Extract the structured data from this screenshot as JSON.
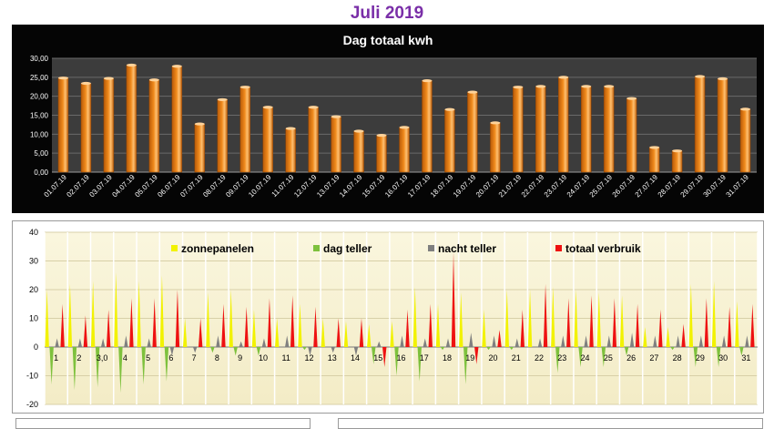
{
  "page": {
    "title": "Juli 2019"
  },
  "chart_data": [
    {
      "type": "bar",
      "title": "Dag totaal kwh",
      "categories": [
        "01.07.19",
        "02.07.19",
        "03.07.19",
        "04.07.19",
        "05.07.19",
        "06.07.19",
        "07.07.19",
        "08.07.19",
        "09.07.19",
        "10.07.19",
        "11.07.19",
        "12.07.19",
        "13.07.19",
        "14.07.19",
        "15.07.19",
        "16.07.19",
        "17.07.19",
        "18.07.19",
        "19.07.19",
        "20.07.19",
        "21.07.19",
        "22.07.19",
        "23.07.19",
        "24.07.19",
        "25.07.19",
        "26.07.19",
        "27.07.19",
        "28.07.19",
        "29.07.19",
        "30.07.19",
        "31.07.19"
      ],
      "values": [
        24.8,
        23.4,
        24.7,
        28.2,
        24.3,
        27.9,
        12.7,
        19.1,
        22.4,
        17.1,
        11.5,
        17.1,
        14.6,
        10.8,
        9.7,
        11.8,
        24.1,
        16.5,
        21.1,
        13.0,
        22.4,
        22.6,
        25.0,
        22.6,
        22.6,
        19.4,
        6.5,
        5.6,
        25.2,
        24.6,
        16.6
      ],
      "yticks": [
        "0,00",
        "5,00",
        "10,00",
        "15,00",
        "20,00",
        "25,00",
        "30,00"
      ],
      "ylim": [
        0,
        30
      ],
      "grid": true,
      "bar_color": "#f08a1c",
      "background": "#3c3c3c"
    },
    {
      "type": "bar",
      "categories": [
        "1",
        "2",
        "3,0",
        "4",
        "5",
        "6",
        "7",
        "8",
        "9",
        "10",
        "11",
        "12",
        "13",
        "14",
        "15",
        "16",
        "17",
        "18",
        "19",
        "20",
        "21",
        "22",
        "23",
        "24",
        "25",
        "26",
        "27",
        "28",
        "29",
        "30",
        "31"
      ],
      "yticks": [
        "-20",
        "-10",
        "0",
        "10",
        "20",
        "30",
        "40"
      ],
      "ylim": [
        -20,
        40
      ],
      "grid": true,
      "legend_placement": "top",
      "series": [
        {
          "name": "zonnepanelen",
          "color": "#f2f200",
          "values": [
            20,
            22,
            23,
            26,
            23,
            25,
            10,
            19,
            20,
            13,
            10,
            15,
            10,
            9,
            8,
            9,
            21,
            15,
            19,
            13,
            20,
            20,
            21,
            20,
            19,
            18,
            7,
            7,
            22,
            23,
            16
          ]
        },
        {
          "name": "dag teller",
          "color": "#7ec13d",
          "values": [
            -13,
            -15,
            -14,
            -16,
            -13,
            -12,
            0,
            -2,
            -3,
            -3,
            0,
            -1,
            0,
            0,
            -6,
            -10,
            -12,
            -1,
            -13,
            -1,
            -1,
            0,
            -9,
            -7,
            -7,
            -3,
            0,
            -1,
            -7,
            -7,
            -3
          ]
        },
        {
          "name": "nacht teller",
          "color": "#7f7f7f",
          "values": [
            3,
            3,
            3,
            4,
            3,
            -3,
            -2,
            4,
            2,
            3,
            4,
            -3,
            -2,
            -3,
            2,
            4,
            3,
            3,
            5,
            4,
            3,
            3,
            4,
            4,
            4,
            5,
            4,
            4,
            4,
            4,
            4
          ]
        },
        {
          "name": "totaal verbruik",
          "color": "#ee1111",
          "values": [
            15,
            11,
            13,
            17,
            17,
            20,
            10,
            15,
            14,
            17,
            18,
            14,
            10,
            10,
            -7,
            13,
            15,
            33,
            -6,
            6,
            13,
            22,
            17,
            18,
            17,
            15,
            13,
            8,
            17,
            14,
            15
          ]
        }
      ]
    }
  ]
}
